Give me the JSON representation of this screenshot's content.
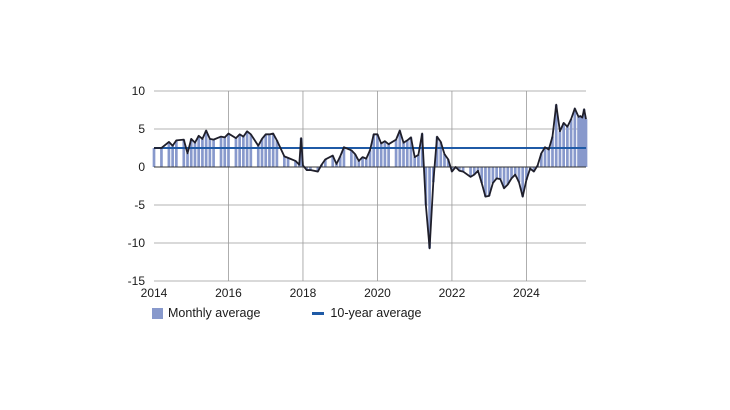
{
  "chart_data": {
    "type": "bar",
    "x_range": [
      2014,
      2025.6
    ],
    "ylim": [
      -15,
      10
    ],
    "x_ticks": [
      {
        "value": 2014,
        "label": "2014"
      },
      {
        "value": 2016,
        "label": "2016"
      },
      {
        "value": 2018,
        "label": "2018"
      },
      {
        "value": 2020,
        "label": "2020"
      },
      {
        "value": 2022,
        "label": "2022"
      },
      {
        "value": 2024,
        "label": "2024"
      }
    ],
    "y_ticks": [
      {
        "value": 10,
        "label": "10"
      },
      {
        "value": 5,
        "label": "5"
      },
      {
        "value": 0,
        "label": "0"
      },
      {
        "value": -5,
        "label": "-5"
      },
      {
        "value": -10,
        "label": "-10"
      },
      {
        "value": -15,
        "label": "-15"
      }
    ],
    "grid": {
      "horizontal": true,
      "vertical": true
    },
    "legend_position": "bottom-left",
    "colors": {
      "bars": "#8899cc",
      "bar_gap": "#ffffff",
      "line": "#1f1f2b",
      "average": "#1f5aa6",
      "grid": "#9a9a9a",
      "zero_axis": "#333333"
    },
    "average_value": 2.5,
    "series": [
      {
        "name": "Monthly average",
        "kind": "bar+line",
        "points": [
          [
            2014.0,
            2.5
          ],
          [
            2014.2,
            2.5
          ],
          [
            2014.4,
            3.3
          ],
          [
            2014.5,
            2.8
          ],
          [
            2014.6,
            3.5
          ],
          [
            2014.8,
            3.6
          ],
          [
            2014.9,
            1.8
          ],
          [
            2015.0,
            3.7
          ],
          [
            2015.1,
            3.2
          ],
          [
            2015.2,
            4.1
          ],
          [
            2015.3,
            3.7
          ],
          [
            2015.4,
            4.8
          ],
          [
            2015.5,
            3.7
          ],
          [
            2015.6,
            3.6
          ],
          [
            2015.8,
            4.0
          ],
          [
            2015.9,
            3.9
          ],
          [
            2016.0,
            4.4
          ],
          [
            2016.2,
            3.8
          ],
          [
            2016.3,
            4.3
          ],
          [
            2016.4,
            4.0
          ],
          [
            2016.5,
            4.7
          ],
          [
            2016.6,
            4.3
          ],
          [
            2016.8,
            2.8
          ],
          [
            2016.9,
            3.7
          ],
          [
            2017.0,
            4.3
          ],
          [
            2017.1,
            4.3
          ],
          [
            2017.2,
            4.4
          ],
          [
            2017.3,
            3.5
          ],
          [
            2017.5,
            1.4
          ],
          [
            2017.6,
            1.2
          ],
          [
            2017.8,
            0.8
          ],
          [
            2017.9,
            0.3
          ],
          [
            2017.95,
            3.8
          ],
          [
            2018.0,
            0.2
          ],
          [
            2018.1,
            -0.4
          ],
          [
            2018.2,
            -0.4
          ],
          [
            2018.4,
            -0.6
          ],
          [
            2018.5,
            0.3
          ],
          [
            2018.6,
            1.0
          ],
          [
            2018.8,
            1.5
          ],
          [
            2018.9,
            0.4
          ],
          [
            2019.0,
            1.4
          ],
          [
            2019.1,
            2.6
          ],
          [
            2019.3,
            2.2
          ],
          [
            2019.4,
            1.7
          ],
          [
            2019.5,
            0.8
          ],
          [
            2019.6,
            1.3
          ],
          [
            2019.7,
            1.1
          ],
          [
            2019.8,
            2.2
          ],
          [
            2019.9,
            4.3
          ],
          [
            2020.0,
            4.3
          ],
          [
            2020.1,
            3.1
          ],
          [
            2020.2,
            3.4
          ],
          [
            2020.3,
            3.0
          ],
          [
            2020.5,
            3.6
          ],
          [
            2020.6,
            4.8
          ],
          [
            2020.7,
            3.2
          ],
          [
            2020.8,
            3.5
          ],
          [
            2020.9,
            3.9
          ],
          [
            2021.0,
            1.3
          ],
          [
            2021.1,
            1.6
          ],
          [
            2021.2,
            4.4
          ],
          [
            2021.3,
            -5.0
          ],
          [
            2021.4,
            -10.7
          ],
          [
            2021.5,
            -2.0
          ],
          [
            2021.6,
            4.0
          ],
          [
            2021.7,
            3.3
          ],
          [
            2021.8,
            1.7
          ],
          [
            2021.9,
            1.0
          ],
          [
            2022.0,
            -0.6
          ],
          [
            2022.1,
            0.0
          ],
          [
            2022.2,
            -0.5
          ],
          [
            2022.3,
            -0.6
          ],
          [
            2022.5,
            -1.3
          ],
          [
            2022.6,
            -1.0
          ],
          [
            2022.7,
            -0.5
          ],
          [
            2022.8,
            -2.1
          ],
          [
            2022.9,
            -3.9
          ],
          [
            2023.0,
            -3.8
          ],
          [
            2023.1,
            -2.1
          ],
          [
            2023.2,
            -1.5
          ],
          [
            2023.3,
            -1.6
          ],
          [
            2023.4,
            -2.8
          ],
          [
            2023.5,
            -2.3
          ],
          [
            2023.6,
            -1.5
          ],
          [
            2023.7,
            -1.0
          ],
          [
            2023.8,
            -2.0
          ],
          [
            2023.9,
            -3.9
          ],
          [
            2024.0,
            -1.7
          ],
          [
            2024.1,
            -0.2
          ],
          [
            2024.2,
            -0.6
          ],
          [
            2024.3,
            0.2
          ],
          [
            2024.4,
            1.8
          ],
          [
            2024.5,
            2.6
          ],
          [
            2024.6,
            2.3
          ],
          [
            2024.7,
            4.0
          ],
          [
            2024.8,
            8.2
          ],
          [
            2024.9,
            4.7
          ],
          [
            2025.0,
            5.8
          ],
          [
            2025.1,
            5.3
          ],
          [
            2025.2,
            6.3
          ],
          [
            2025.3,
            7.7
          ],
          [
            2025.4,
            6.6
          ],
          [
            2025.45,
            6.7
          ],
          [
            2025.5,
            6.5
          ],
          [
            2025.55,
            7.6
          ],
          [
            2025.6,
            6.3
          ]
        ]
      },
      {
        "name": "10-year average",
        "kind": "line",
        "value": 2.5
      }
    ]
  }
}
